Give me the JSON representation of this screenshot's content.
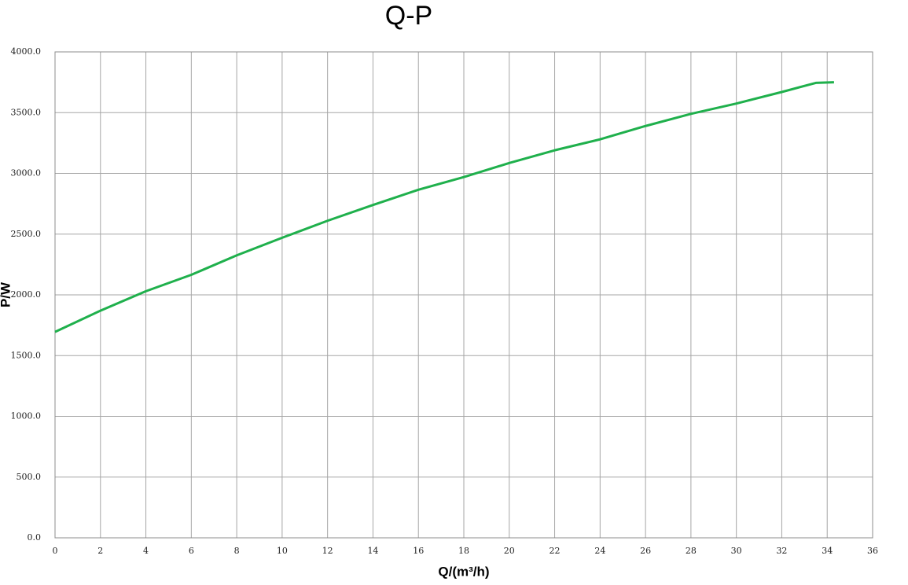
{
  "chart_data": {
    "type": "line",
    "title": "Q-P",
    "x_label": "Q/(m³/h)",
    "y_label": "P/W",
    "x": [
      0,
      2,
      4,
      6,
      8,
      10,
      12,
      14,
      16,
      18,
      20,
      22,
      24,
      26,
      28,
      30,
      32,
      33.5,
      34.3
    ],
    "series": [
      {
        "name": "P",
        "color": "#1fb04c",
        "values": [
          1695,
          1870,
          2030,
          2165,
          2325,
          2470,
          2610,
          2740,
          2865,
          2970,
          3085,
          3190,
          3280,
          3390,
          3490,
          3575,
          3670,
          3745,
          3750
        ]
      }
    ],
    "xlim": [
      0,
      36
    ],
    "xticks": [
      0,
      2,
      4,
      6,
      8,
      10,
      12,
      14,
      16,
      18,
      20,
      22,
      24,
      26,
      28,
      30,
      32,
      34,
      36
    ],
    "ylim": [
      0,
      4000
    ],
    "yticks": [
      {
        "value": 0,
        "label": "0.0"
      },
      {
        "value": 500,
        "label": "500.0"
      },
      {
        "value": 1000,
        "label": "1000.0"
      },
      {
        "value": 1500,
        "label": "1500.0"
      },
      {
        "value": 2000,
        "label": "2000.0"
      },
      {
        "value": 2500,
        "label": "2500.0"
      },
      {
        "value": 3000,
        "label": "3000.0"
      },
      {
        "value": 3500,
        "label": "3500.0"
      },
      {
        "value": 4000,
        "label": "4000.0"
      }
    ],
    "grid": true
  }
}
